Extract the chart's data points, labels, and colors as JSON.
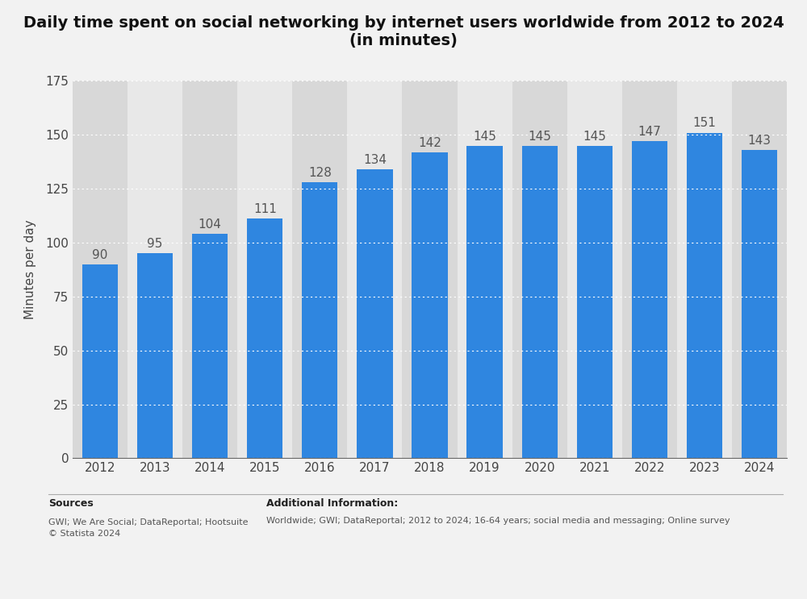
{
  "title": "Daily time spent on social networking by internet users worldwide from 2012 to 2024\n(in minutes)",
  "years": [
    "2012",
    "2013",
    "2014",
    "2015",
    "2016",
    "2017",
    "2018",
    "2019",
    "2020",
    "2021",
    "2022",
    "2023",
    "2024"
  ],
  "values": [
    90,
    95,
    104,
    111,
    128,
    134,
    142,
    145,
    145,
    145,
    147,
    151,
    143
  ],
  "bar_color": "#2f86e0",
  "ylabel": "Minutes per day",
  "ylim": [
    0,
    175
  ],
  "yticks": [
    0,
    25,
    50,
    75,
    100,
    125,
    150,
    175
  ],
  "bg_color": "#f2f2f2",
  "plot_bg_color": "#e8e8e8",
  "col_band_light": "#e8e8e8",
  "col_band_dark": "#d8d8d8",
  "grid_color": "#ffffff",
  "sources_title": "Sources",
  "sources_text": "GWI; We Are Social; DataReportal; Hootsuite\n© Statista 2024",
  "add_info_title": "Additional Information:",
  "add_info_text": "Worldwide; GWI; DataReportal; 2012 to 2024; 16-64 years; social media and messaging; Online survey",
  "title_fontsize": 14,
  "label_fontsize": 11,
  "tick_fontsize": 11,
  "annotation_fontsize": 11
}
